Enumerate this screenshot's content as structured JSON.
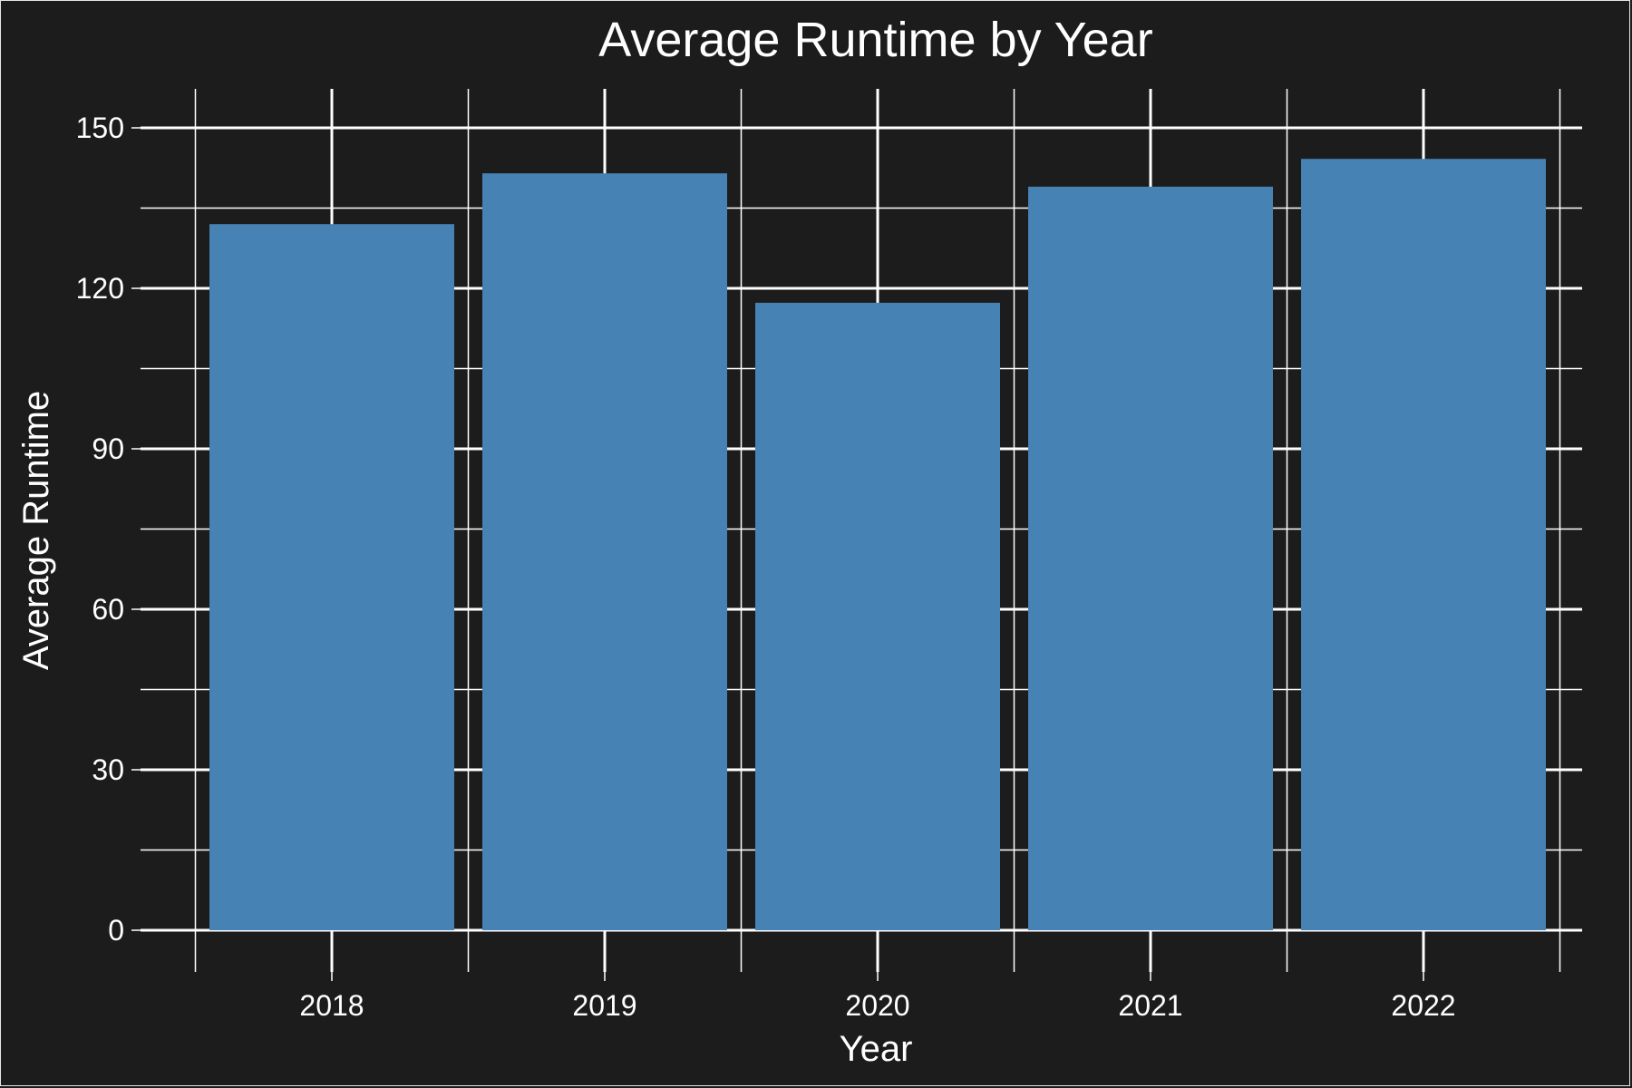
{
  "chart_data": {
    "type": "bar",
    "title": "Average Runtime by Year",
    "xlabel": "Year",
    "ylabel": "Average Runtime",
    "categories": [
      "2018",
      "2019",
      "2020",
      "2021",
      "2022"
    ],
    "values": [
      132,
      141.5,
      117.3,
      139,
      144.2
    ],
    "ylim": [
      0,
      150
    ],
    "yticks": [
      "0",
      "30",
      "60",
      "90",
      "120",
      "150"
    ],
    "ytick_values": [
      0,
      30,
      60,
      90,
      120,
      150
    ],
    "grid": true,
    "colors": {
      "background": "#1c1c1c",
      "bar": "#4682b4",
      "grid": "#ffffff",
      "text": "#ffffff"
    }
  }
}
